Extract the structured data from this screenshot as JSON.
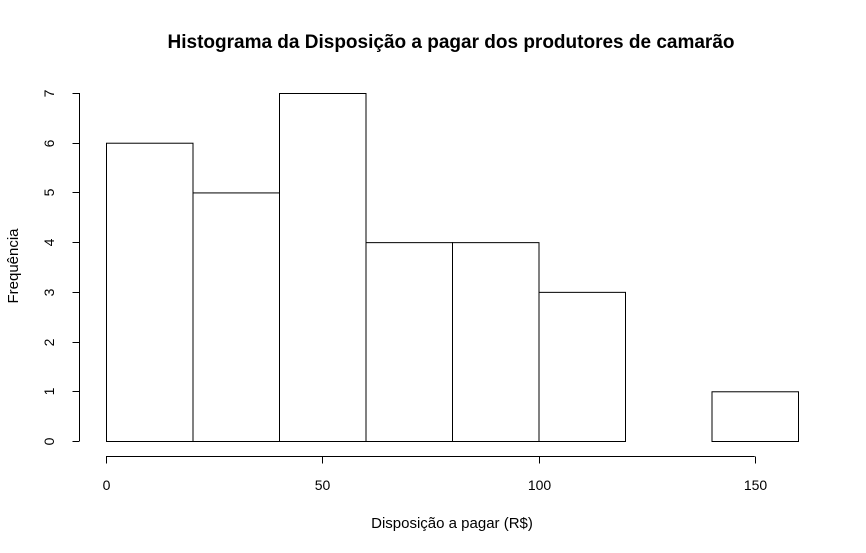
{
  "chart_data": {
    "type": "bar",
    "title": "Histograma da Disposição a pagar dos produtores de camarão",
    "xlabel": "Disposição a pagar (R$)",
    "ylabel": "Frequência",
    "bins": [
      {
        "start": 0,
        "end": 20,
        "count": 6
      },
      {
        "start": 20,
        "end": 40,
        "count": 5
      },
      {
        "start": 40,
        "end": 60,
        "count": 7
      },
      {
        "start": 60,
        "end": 80,
        "count": 4
      },
      {
        "start": 80,
        "end": 100,
        "count": 4
      },
      {
        "start": 100,
        "end": 120,
        "count": 3
      },
      {
        "start": 120,
        "end": 140,
        "count": 0
      },
      {
        "start": 140,
        "end": 160,
        "count": 1
      }
    ],
    "xlim": [
      0,
      160
    ],
    "ylim": [
      0,
      7
    ],
    "xticks": [
      0,
      50,
      100,
      150
    ],
    "yticks": [
      0,
      1,
      2,
      3,
      4,
      5,
      6,
      7
    ],
    "grid": false,
    "colors": {
      "bar_fill": "#ffffff",
      "bar_stroke": "#000000"
    }
  }
}
